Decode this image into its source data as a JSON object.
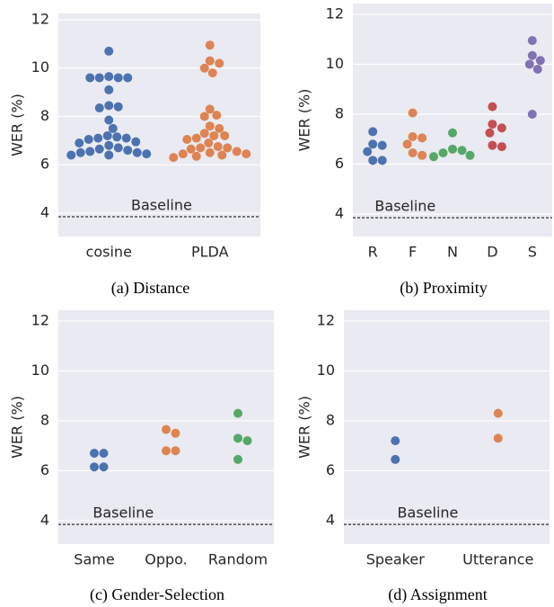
{
  "chart_data": [
    {
      "type": "swarm",
      "ylabel": "WER (%)",
      "caption": "(a) Distance",
      "categories": [
        "cosine",
        "PLDA"
      ],
      "colors": [
        "#4c72b0",
        "#dd8452"
      ],
      "values": [
        [
          10.7,
          9.65,
          9.6,
          9.6,
          9.6,
          9.6,
          9.1,
          8.45,
          8.4,
          8.35,
          7.85,
          7.5,
          7.2,
          7.15,
          7.1,
          7.1,
          7.05,
          6.95,
          6.9,
          6.8,
          6.7,
          6.65,
          6.6,
          6.55,
          6.5,
          6.5,
          6.45,
          6.4,
          6.4
        ],
        [
          10.95,
          10.3,
          10.2,
          10.0,
          9.8,
          8.3,
          8.05,
          8.0,
          7.6,
          7.5,
          7.3,
          7.2,
          7.2,
          7.1,
          7.05,
          6.9,
          6.75,
          6.7,
          6.7,
          6.65,
          6.55,
          6.5,
          6.45,
          6.45,
          6.4,
          6.35,
          6.3
        ]
      ],
      "baseline": {
        "label": "Baseline",
        "value": 3.85
      },
      "ylim": [
        3.03,
        12.26
      ],
      "yticks": [
        4,
        6,
        8,
        10,
        12
      ],
      "grid": true
    },
    {
      "type": "swarm",
      "ylabel": "WER (%)",
      "caption": "(b) Proximity",
      "categories": [
        "R",
        "F",
        "N",
        "D",
        "S"
      ],
      "colors": [
        "#4c72b0",
        "#dd8452",
        "#55a868",
        "#c44e52",
        "#8172b3"
      ],
      "values": [
        [
          7.3,
          6.8,
          6.75,
          6.5,
          6.15,
          6.15
        ],
        [
          8.05,
          7.1,
          7.05,
          6.8,
          6.45,
          6.35
        ],
        [
          7.25,
          6.6,
          6.55,
          6.45,
          6.35,
          6.3
        ],
        [
          8.3,
          7.6,
          7.45,
          7.25,
          6.75,
          6.7
        ],
        [
          10.95,
          10.35,
          10.15,
          10.0,
          9.8,
          8.0
        ]
      ],
      "baseline": {
        "label": "Baseline",
        "value": 3.85
      },
      "ylim": [
        3.1,
        12.43
      ],
      "yticks": [
        4,
        6,
        8,
        10,
        12
      ],
      "grid": true
    },
    {
      "type": "swarm",
      "ylabel": "WER (%)",
      "caption": "(c) Gender-Selection",
      "categories": [
        "Same",
        "Oppo.",
        "Random"
      ],
      "colors": [
        "#4c72b0",
        "#dd8452",
        "#55a868"
      ],
      "values": [
        [
          6.7,
          6.7,
          6.15,
          6.15
        ],
        [
          7.65,
          7.5,
          6.8,
          6.8
        ],
        [
          8.3,
          7.3,
          7.2,
          6.45
        ]
      ],
      "baseline": {
        "label": "Baseline",
        "value": 3.85
      },
      "ylim": [
        3.06,
        12.43
      ],
      "yticks": [
        4,
        6,
        8,
        10,
        12
      ],
      "grid": true
    },
    {
      "type": "swarm",
      "ylabel": "WER (%)",
      "caption": "(d) Assignment",
      "categories": [
        "Speaker",
        "Utterance"
      ],
      "colors": [
        "#4c72b0",
        "#dd8452"
      ],
      "values": [
        [
          7.2,
          6.45
        ],
        [
          8.3,
          7.3
        ]
      ],
      "baseline": {
        "label": "Baseline",
        "value": 3.85
      },
      "ylim": [
        3.06,
        12.43
      ],
      "yticks": [
        4,
        6,
        8,
        10,
        12
      ],
      "grid": true
    }
  ]
}
